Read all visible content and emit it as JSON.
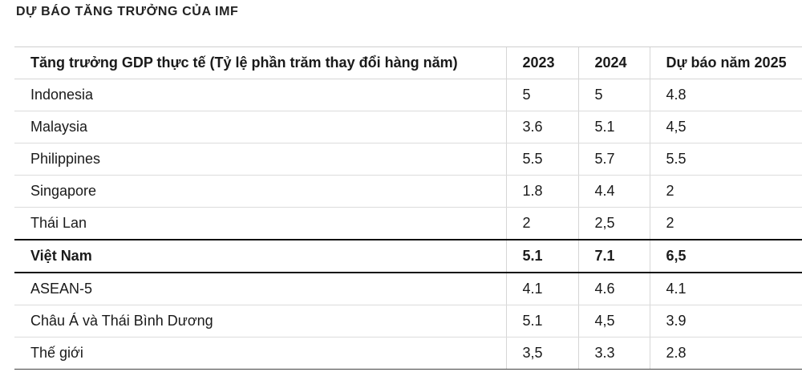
{
  "title": "DỰ BÁO TĂNG TRƯỞNG CỦA IMF",
  "table": {
    "headers": [
      "Tăng trưởng GDP thực tế (Tỷ lệ phần trăm thay đổi hàng năm)",
      "2023",
      "2024",
      "Dự báo năm 2025"
    ],
    "rows": [
      [
        "Indonesia",
        "5",
        "5",
        "4.8"
      ],
      [
        "Malaysia",
        "3.6",
        "5.1",
        "4,5"
      ],
      [
        "Philippines",
        "5.5",
        "5.7",
        "5.5"
      ],
      [
        "Singapore",
        "1.8",
        "4.4",
        "2"
      ],
      [
        "Thái Lan",
        "2",
        "2,5",
        "2"
      ],
      [
        "Việt Nam",
        "5.1",
        "7.1",
        "6,5"
      ],
      [
        "ASEAN-5",
        "4.1",
        "4.6",
        "4.1"
      ],
      [
        "Châu Á và Thái Bình Dương",
        "5.1",
        "4,5",
        "3.9"
      ],
      [
        "Thế giới",
        "3,5",
        "3.3",
        "2.8"
      ]
    ]
  }
}
